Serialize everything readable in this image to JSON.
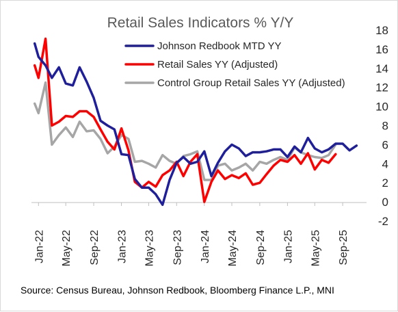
{
  "chart_data": {
    "type": "line",
    "title": "Retail Sales Indicators % Y/Y",
    "source": "Source: Census Bureau, Johnson Redbook, Bloomberg Finance L.P., MNI",
    "ylim": [
      -2,
      18
    ],
    "yticks": [
      18,
      16,
      14,
      12,
      10,
      8,
      6,
      4,
      2,
      0,
      -2
    ],
    "xlim": [
      "2021-12-01",
      "2025-12-15"
    ],
    "xticks": [
      {
        "label": "Jan-22",
        "date": "2022-01-01"
      },
      {
        "label": "May-22",
        "date": "2022-05-01"
      },
      {
        "label": "Sep-22",
        "date": "2022-09-01"
      },
      {
        "label": "Jan-23",
        "date": "2023-01-01"
      },
      {
        "label": "May-23",
        "date": "2023-05-01"
      },
      {
        "label": "Sep-23",
        "date": "2023-09-01"
      },
      {
        "label": "Jan-24",
        "date": "2024-01-01"
      },
      {
        "label": "May-24",
        "date": "2024-05-01"
      },
      {
        "label": "Sep-24",
        "date": "2024-09-01"
      },
      {
        "label": "Jan-25",
        "date": "2025-01-01"
      },
      {
        "label": "May-25",
        "date": "2025-05-01"
      },
      {
        "label": "Sep-25",
        "date": "2025-09-01"
      }
    ],
    "y_axis_position": "right",
    "x_axis_labels": "rotated vertical, below plot",
    "grid": false,
    "legend_position": "top-right",
    "series": [
      {
        "name": "Johnson Redbook MTD YY",
        "color": "#1f1f9c",
        "points": [
          [
            "2021-12-15",
            16.6
          ],
          [
            "2022-01-01",
            15.2
          ],
          [
            "2022-02-01",
            14.3
          ],
          [
            "2022-03-01",
            13.0
          ],
          [
            "2022-04-01",
            14.1
          ],
          [
            "2022-05-01",
            12.4
          ],
          [
            "2022-06-01",
            12.2
          ],
          [
            "2022-07-01",
            14.1
          ],
          [
            "2022-08-01",
            12.6
          ],
          [
            "2022-09-01",
            10.9
          ],
          [
            "2022-10-01",
            8.5
          ],
          [
            "2022-11-01",
            8.0
          ],
          [
            "2022-12-01",
            7.6
          ],
          [
            "2023-01-01",
            5.0
          ],
          [
            "2023-02-01",
            4.9
          ],
          [
            "2023-03-01",
            2.4
          ],
          [
            "2023-04-01",
            1.5
          ],
          [
            "2023-05-01",
            1.5
          ],
          [
            "2023-06-01",
            0.8
          ],
          [
            "2023-07-01",
            -0.3
          ],
          [
            "2023-08-01",
            2.3
          ],
          [
            "2023-09-01",
            4.1
          ],
          [
            "2023-10-01",
            4.7
          ],
          [
            "2023-11-01",
            4.0
          ],
          [
            "2023-12-01",
            4.2
          ],
          [
            "2024-01-01",
            5.3
          ],
          [
            "2024-02-01",
            2.7
          ],
          [
            "2024-03-01",
            4.1
          ],
          [
            "2024-04-01",
            5.3
          ],
          [
            "2024-05-01",
            6.0
          ],
          [
            "2024-06-01",
            5.6
          ],
          [
            "2024-07-01",
            4.8
          ],
          [
            "2024-08-01",
            5.2
          ],
          [
            "2024-09-01",
            5.2
          ],
          [
            "2024-10-01",
            5.3
          ],
          [
            "2024-11-01",
            5.5
          ],
          [
            "2024-12-01",
            5.5
          ],
          [
            "2025-01-01",
            4.7
          ],
          [
            "2025-02-01",
            5.8
          ],
          [
            "2025-03-01",
            5.2
          ],
          [
            "2025-04-01",
            6.7
          ],
          [
            "2025-05-01",
            5.6
          ],
          [
            "2025-06-01",
            5.2
          ],
          [
            "2025-07-01",
            5.5
          ],
          [
            "2025-08-01",
            6.1
          ],
          [
            "2025-09-01",
            6.1
          ],
          [
            "2025-10-01",
            5.4
          ],
          [
            "2025-11-01",
            5.9
          ]
        ]
      },
      {
        "name": "Retail Sales YY (Adjusted)",
        "color": "#ff0000",
        "points": [
          [
            "2021-12-15",
            14.3
          ],
          [
            "2022-01-01",
            13.0
          ],
          [
            "2022-02-01",
            17.1
          ],
          [
            "2022-03-01",
            8.0
          ],
          [
            "2022-04-01",
            8.4
          ],
          [
            "2022-05-01",
            9.0
          ],
          [
            "2022-06-01",
            8.9
          ],
          [
            "2022-07-01",
            9.5
          ],
          [
            "2022-08-01",
            9.5
          ],
          [
            "2022-09-01",
            8.9
          ],
          [
            "2022-10-01",
            7.6
          ],
          [
            "2022-11-01",
            6.3
          ],
          [
            "2022-12-01",
            5.5
          ],
          [
            "2023-01-01",
            7.7
          ],
          [
            "2023-02-01",
            5.4
          ],
          [
            "2023-03-01",
            2.1
          ],
          [
            "2023-04-01",
            1.5
          ],
          [
            "2023-05-01",
            2.1
          ],
          [
            "2023-06-01",
            1.6
          ],
          [
            "2023-07-01",
            2.8
          ],
          [
            "2023-08-01",
            3.3
          ],
          [
            "2023-09-01",
            4.2
          ],
          [
            "2023-10-01",
            2.7
          ],
          [
            "2023-11-01",
            4.2
          ],
          [
            "2023-12-01",
            5.0
          ],
          [
            "2024-01-01",
            0.0
          ],
          [
            "2024-02-01",
            2.1
          ],
          [
            "2024-03-01",
            3.3
          ],
          [
            "2024-04-01",
            2.4
          ],
          [
            "2024-05-01",
            2.8
          ],
          [
            "2024-06-01",
            2.5
          ],
          [
            "2024-07-01",
            3.0
          ],
          [
            "2024-08-01",
            1.8
          ],
          [
            "2024-09-01",
            2.0
          ],
          [
            "2024-10-01",
            2.9
          ],
          [
            "2024-11-01",
            3.8
          ],
          [
            "2024-12-01",
            4.4
          ],
          [
            "2025-01-01",
            4.2
          ],
          [
            "2025-02-01",
            4.9
          ],
          [
            "2025-03-01",
            4.0
          ],
          [
            "2025-04-01",
            5.1
          ],
          [
            "2025-05-01",
            3.4
          ],
          [
            "2025-06-01",
            4.4
          ],
          [
            "2025-07-01",
            4.1
          ],
          [
            "2025-08-01",
            5.0
          ]
        ]
      },
      {
        "name": "Control Group Retail Sales YY (Adjusted)",
        "color": "#a6a6a6",
        "points": [
          [
            "2021-12-15",
            10.3
          ],
          [
            "2022-01-01",
            9.3
          ],
          [
            "2022-02-01",
            12.5
          ],
          [
            "2022-03-01",
            6.0
          ],
          [
            "2022-04-01",
            7.0
          ],
          [
            "2022-05-01",
            7.8
          ],
          [
            "2022-06-01",
            6.8
          ],
          [
            "2022-07-01",
            8.4
          ],
          [
            "2022-08-01",
            7.4
          ],
          [
            "2022-09-01",
            7.5
          ],
          [
            "2022-10-01",
            6.6
          ],
          [
            "2022-11-01",
            5.1
          ],
          [
            "2022-12-01",
            5.8
          ],
          [
            "2023-01-01",
            7.0
          ],
          [
            "2023-02-01",
            6.6
          ],
          [
            "2023-03-01",
            4.2
          ],
          [
            "2023-04-01",
            4.3
          ],
          [
            "2023-05-01",
            4.0
          ],
          [
            "2023-06-01",
            3.6
          ],
          [
            "2023-07-01",
            4.9
          ],
          [
            "2023-08-01",
            4.3
          ],
          [
            "2023-09-01",
            4.0
          ],
          [
            "2023-10-01",
            4.8
          ],
          [
            "2023-11-01",
            5.0
          ],
          [
            "2023-12-01",
            5.3
          ],
          [
            "2024-01-01",
            2.3
          ],
          [
            "2024-02-01",
            2.3
          ],
          [
            "2024-03-01",
            3.8
          ],
          [
            "2024-04-01",
            4.0
          ],
          [
            "2024-05-01",
            3.3
          ],
          [
            "2024-06-01",
            3.6
          ],
          [
            "2024-07-01",
            4.0
          ],
          [
            "2024-08-01",
            3.3
          ],
          [
            "2024-09-01",
            4.2
          ],
          [
            "2024-10-01",
            4.0
          ],
          [
            "2024-11-01",
            4.4
          ],
          [
            "2024-12-01",
            4.7
          ],
          [
            "2025-01-01",
            4.4
          ],
          [
            "2025-02-01",
            5.7
          ],
          [
            "2025-03-01",
            5.2
          ],
          [
            "2025-04-01",
            4.9
          ],
          [
            "2025-05-01",
            4.7
          ],
          [
            "2025-06-01",
            4.6
          ],
          [
            "2025-07-01",
            4.9
          ],
          [
            "2025-08-01",
            6.0
          ]
        ]
      }
    ]
  }
}
